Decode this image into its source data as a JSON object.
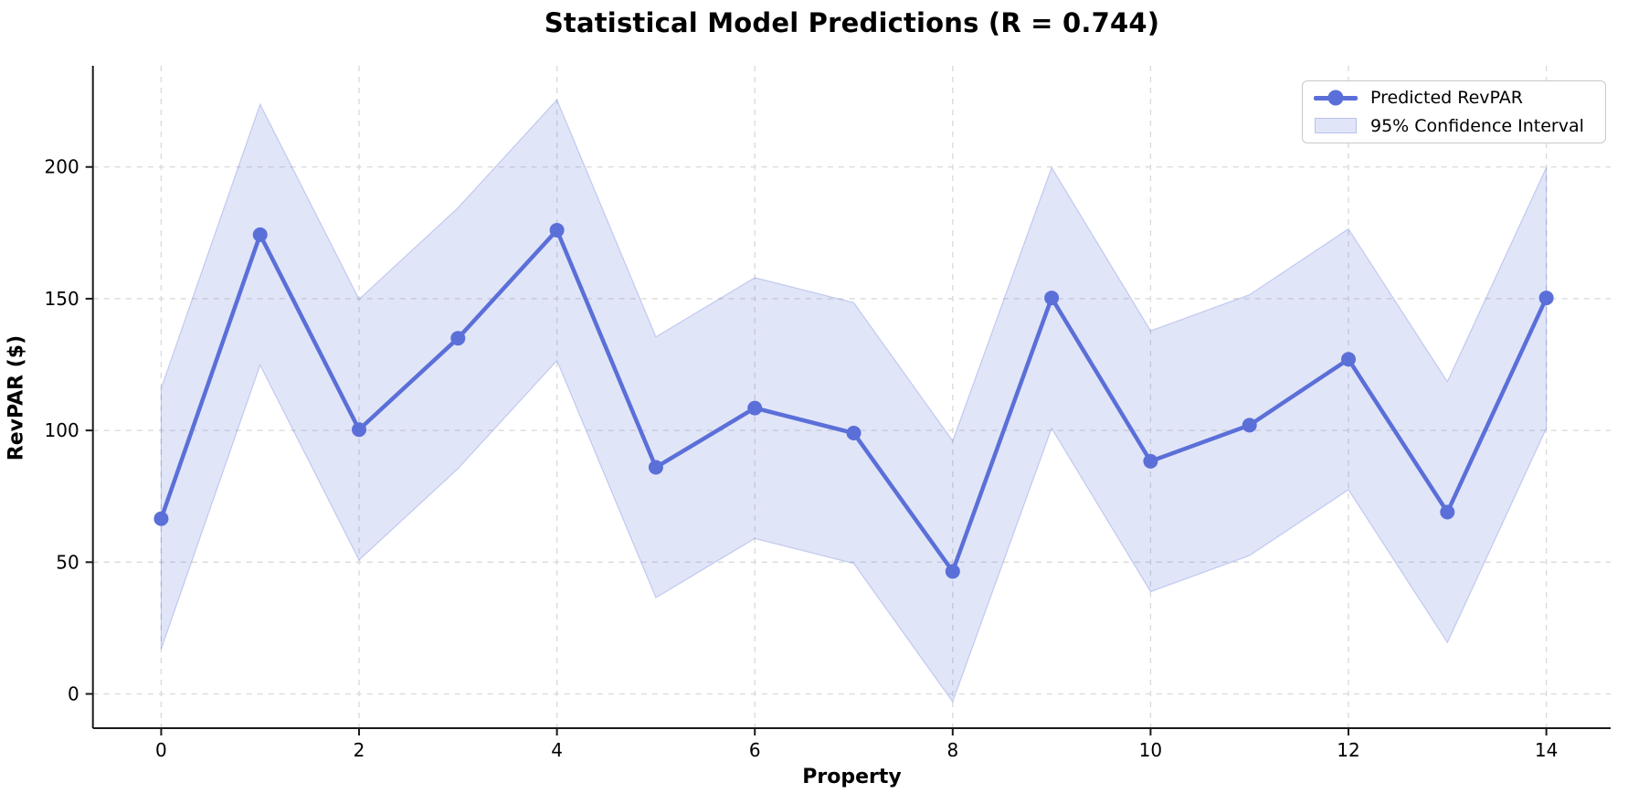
{
  "chart_data": {
    "type": "line",
    "title": "Statistical Model Predictions (R = 0.744)",
    "xlabel": "Property",
    "ylabel": "RevPAR ($)",
    "x": [
      0,
      1,
      2,
      3,
      4,
      5,
      6,
      7,
      8,
      9,
      10,
      11,
      12,
      13,
      14
    ],
    "series": [
      {
        "name": "Predicted RevPAR",
        "values": [
          66.5,
          174.3,
          100.3,
          135.0,
          176.0,
          86.0,
          108.5,
          99.0,
          46.5,
          150.3,
          88.3,
          102.0,
          127.0,
          69.0,
          150.3
        ]
      }
    ],
    "confidence_interval": {
      "name": "95% Confidence Interval",
      "lower": [
        17.0,
        124.8,
        50.8,
        85.5,
        126.5,
        36.5,
        59.0,
        49.5,
        -3.0,
        100.8,
        38.8,
        52.5,
        77.5,
        19.5,
        100.8
      ],
      "upper": [
        116.0,
        223.8,
        149.8,
        184.5,
        225.5,
        135.5,
        158.0,
        148.5,
        96.0,
        199.8,
        137.8,
        151.5,
        176.5,
        118.5,
        199.8
      ]
    },
    "x_ticks": [
      0,
      2,
      4,
      6,
      8,
      10,
      12,
      14
    ],
    "y_ticks": [
      0,
      50,
      100,
      150,
      200
    ],
    "xlim": [
      -0.69,
      14.65
    ],
    "ylim": [
      -13.0,
      238.4
    ],
    "grid": true,
    "grid_style": "dashed",
    "legend_position": "upper right",
    "colors": {
      "line": "#5b6fd8",
      "marker": "#5b6fd8",
      "band_fill": "rgba(91,111,216,0.18)",
      "band_edge": "rgba(91,111,216,0.30)",
      "grid": "#d9d9d9",
      "spine": "#1a1a1a",
      "tick_text": "#000000"
    }
  },
  "legend": {
    "items": [
      {
        "label": "Predicted RevPAR",
        "type": "line-marker"
      },
      {
        "label": "95% Confidence Interval",
        "type": "patch"
      }
    ]
  }
}
